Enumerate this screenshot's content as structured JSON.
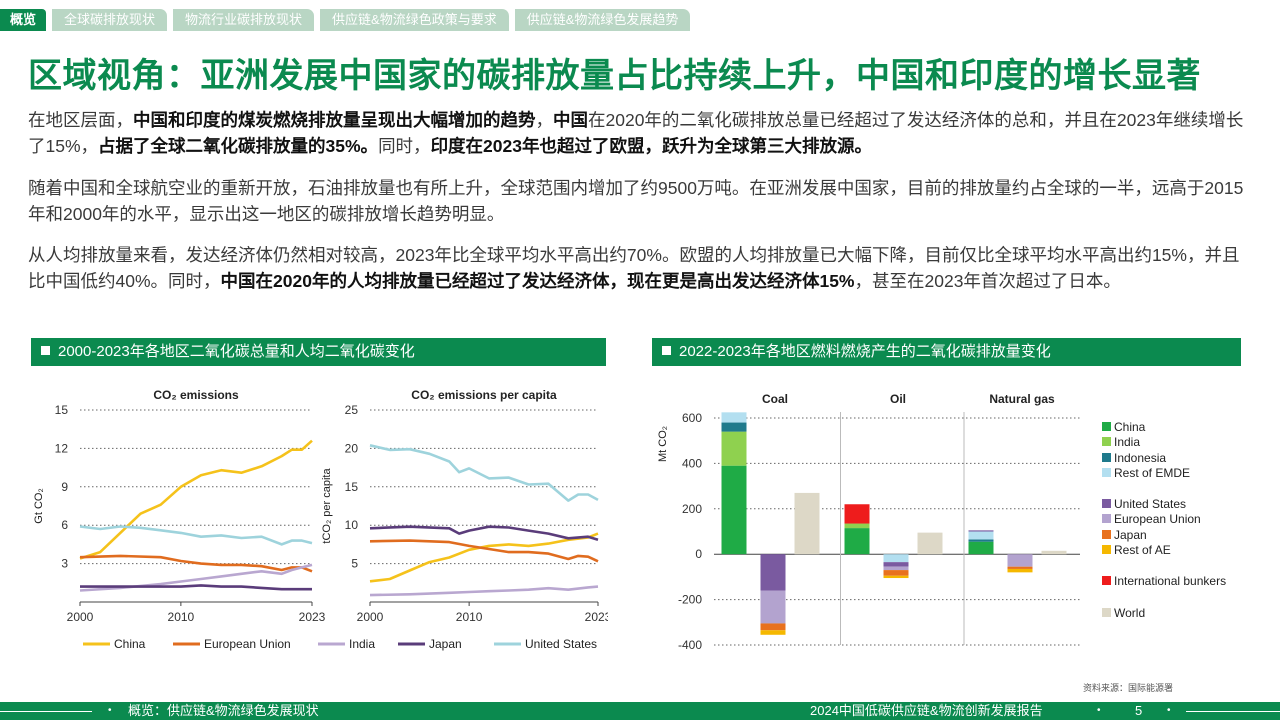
{
  "nav": {
    "active": "概览",
    "tabs": [
      "全球碳排放现状",
      "物流行业碳排放现状",
      "供应链&物流绿色政策与要求",
      "供应链&物流绿色发展趋势"
    ]
  },
  "title": "区域视角：亚洲发展中国家的碳排放量占比持续上升，中国和印度的增长显著",
  "paragraphs": [
    [
      {
        "t": "在地区层面，",
        "b": false
      },
      {
        "t": "中国和印度的煤炭燃烧排放量呈现出大幅增加的趋势",
        "b": true
      },
      {
        "t": "，",
        "b": false
      },
      {
        "t": "中国",
        "b": true
      },
      {
        "t": "在2020年的二氧化碳排放总量已经超过了发达经济体的总和，并且在2023年继续增长了15%，",
        "b": false
      },
      {
        "t": "占据了全球二氧化碳排放量的35%。",
        "b": true
      },
      {
        "t": "同时，",
        "b": false
      },
      {
        "t": "印度在2023年也超过了欧盟，跃升为全球第三大排放源。",
        "b": true
      }
    ],
    [
      {
        "t": "随着中国和全球航空业的重新开放，石油排放量也有所上升，全球范围内增加了约9500万吨。在亚洲发展中国家，目前的排放量约占全球的一半，远高于2015年和2000年的水平，显示出这一地区的碳排放增长趋势明显。",
        "b": false
      }
    ],
    [
      {
        "t": "从人均排放量来看，发达经济体仍然相对较高，2023年比全球平均水平高出约70%。欧盟的人均排放量已大幅下降，目前仅比全球平均水平高出约15%，并且比中国低约40%。同时，",
        "b": false
      },
      {
        "t": "中国在2020年的人均排放量已经超过了发达经济体，现在更是高出发达经济体15%",
        "b": true
      },
      {
        "t": "，甚至在2023年首次超过了日本。",
        "b": false
      }
    ]
  ],
  "section_left": "2000-2023年各地区二氧化碳总量和人均二氧化碳变化",
  "section_right": "2022-2023年各地区燃料燃烧产生的二氧化碳排放量变化",
  "colors": {
    "green": "#0b8a4f",
    "China": "#f5c21b",
    "European Union": "#e06c1f",
    "India": "#b9a7d0",
    "Japan": "#5a3c7a",
    "United States": "#9ed3dc",
    "bar_China": "#1fab46",
    "bar_India": "#8fd14f",
    "bar_Indonesia": "#1f7a8c",
    "bar_RestEMDE": "#b3dff0",
    "bar_US": "#7a5aa0",
    "bar_EU": "#b3a3cf",
    "bar_Japan": "#e8711e",
    "bar_RestAE": "#f5b800",
    "bar_Bunkers": "#ee1c1c",
    "bar_World": "#ddd8c7"
  },
  "chart_data": [
    {
      "type": "line",
      "title": "CO₂ emissions",
      "ylabel": "Gt CO₂",
      "xlim": [
        2000,
        2023
      ],
      "ylim": [
        0,
        15
      ],
      "yticks": [
        3,
        6,
        9,
        12,
        15
      ],
      "xticks": [
        2000,
        2010,
        2023
      ],
      "grid": true,
      "series": [
        {
          "name": "China",
          "x": [
            2000,
            2002,
            2004,
            2006,
            2008,
            2010,
            2012,
            2014,
            2016,
            2018,
            2020,
            2021,
            2022,
            2023
          ],
          "values": [
            3.4,
            3.9,
            5.4,
            6.9,
            7.6,
            9.0,
            9.9,
            10.3,
            10.1,
            10.6,
            11.4,
            11.9,
            11.9,
            12.6
          ]
        },
        {
          "name": "European Union",
          "x": [
            2000,
            2004,
            2008,
            2010,
            2012,
            2014,
            2016,
            2018,
            2020,
            2021,
            2022,
            2023
          ],
          "values": [
            3.5,
            3.6,
            3.5,
            3.2,
            3.0,
            2.9,
            2.9,
            2.8,
            2.5,
            2.7,
            2.7,
            2.4
          ]
        },
        {
          "name": "India",
          "x": [
            2000,
            2004,
            2008,
            2010,
            2012,
            2014,
            2016,
            2018,
            2020,
            2021,
            2022,
            2023
          ],
          "values": [
            0.9,
            1.1,
            1.4,
            1.6,
            1.8,
            2.0,
            2.2,
            2.4,
            2.2,
            2.5,
            2.7,
            2.9
          ]
        },
        {
          "name": "Japan",
          "x": [
            2000,
            2004,
            2008,
            2010,
            2012,
            2014,
            2016,
            2018,
            2020,
            2022,
            2023
          ],
          "values": [
            1.2,
            1.2,
            1.2,
            1.2,
            1.3,
            1.2,
            1.2,
            1.1,
            1.0,
            1.0,
            1.0
          ]
        },
        {
          "name": "United States",
          "x": [
            2000,
            2002,
            2004,
            2006,
            2008,
            2010,
            2012,
            2014,
            2016,
            2018,
            2020,
            2021,
            2022,
            2023
          ],
          "values": [
            5.9,
            5.7,
            5.9,
            5.8,
            5.6,
            5.4,
            5.1,
            5.2,
            5.0,
            5.1,
            4.5,
            4.8,
            4.8,
            4.6
          ]
        }
      ]
    },
    {
      "type": "line",
      "title": "CO₂ emissions per capita",
      "ylabel": "tCO₂ per capita",
      "xlim": [
        2000,
        2023
      ],
      "ylim": [
        0,
        25
      ],
      "yticks": [
        5,
        10,
        15,
        20,
        25
      ],
      "xticks": [
        2000,
        2010,
        2023
      ],
      "grid": true,
      "series": [
        {
          "name": "China",
          "x": [
            2000,
            2002,
            2004,
            2006,
            2008,
            2010,
            2012,
            2014,
            2016,
            2018,
            2020,
            2022,
            2023
          ],
          "values": [
            2.7,
            3.0,
            4.1,
            5.2,
            5.8,
            6.8,
            7.3,
            7.5,
            7.3,
            7.6,
            8.1,
            8.4,
            8.9
          ]
        },
        {
          "name": "European Union",
          "x": [
            2000,
            2004,
            2008,
            2010,
            2012,
            2014,
            2016,
            2018,
            2020,
            2021,
            2022,
            2023
          ],
          "values": [
            7.9,
            8.0,
            7.8,
            7.3,
            6.9,
            6.5,
            6.5,
            6.3,
            5.6,
            6.0,
            5.9,
            5.3
          ]
        },
        {
          "name": "India",
          "x": [
            2000,
            2004,
            2008,
            2010,
            2012,
            2014,
            2016,
            2018,
            2020,
            2022,
            2023
          ],
          "values": [
            0.9,
            1.0,
            1.2,
            1.3,
            1.4,
            1.5,
            1.6,
            1.8,
            1.6,
            1.9,
            2.0
          ]
        },
        {
          "name": "Japan",
          "x": [
            2000,
            2004,
            2008,
            2009,
            2010,
            2012,
            2014,
            2016,
            2018,
            2020,
            2022,
            2023
          ],
          "values": [
            9.6,
            9.8,
            9.6,
            8.9,
            9.3,
            9.8,
            9.7,
            9.3,
            8.9,
            8.3,
            8.5,
            8.1
          ]
        },
        {
          "name": "United States",
          "x": [
            2000,
            2002,
            2004,
            2006,
            2008,
            2009,
            2010,
            2012,
            2014,
            2016,
            2018,
            2020,
            2021,
            2022,
            2023
          ],
          "values": [
            20.4,
            19.8,
            19.9,
            19.3,
            18.3,
            16.9,
            17.4,
            16.1,
            16.2,
            15.3,
            15.4,
            13.2,
            14.0,
            14.0,
            13.3
          ]
        }
      ]
    },
    {
      "type": "bar",
      "stacked": true,
      "ylabel": "Mt CO₂",
      "ylim": [
        -400,
        600
      ],
      "yticks": [
        -400,
        -200,
        0,
        200,
        400,
        600
      ],
      "grid": true,
      "groups": [
        "Coal",
        "Oil",
        "Natural gas"
      ],
      "legend": [
        "China",
        "India",
        "Indonesia",
        "Rest of EMDE",
        "United States",
        "European Union",
        "Japan",
        "Rest of AE",
        "International bunkers",
        "World"
      ],
      "bars": [
        {
          "group": "Coal",
          "kind": "emde",
          "segments": [
            {
              "name": "China",
              "value": 390
            },
            {
              "name": "India",
              "value": 150
            },
            {
              "name": "Indonesia",
              "value": 40
            },
            {
              "name": "Rest of EMDE",
              "value": 45
            }
          ]
        },
        {
          "group": "Coal",
          "kind": "ae",
          "segments": [
            {
              "name": "United States",
              "value": -160
            },
            {
              "name": "European Union",
              "value": -145
            },
            {
              "name": "Japan",
              "value": -30
            },
            {
              "name": "Rest of AE",
              "value": -20
            }
          ]
        },
        {
          "group": "Coal",
          "kind": "world",
          "segments": [
            {
              "name": "World",
              "value": 270
            }
          ]
        },
        {
          "group": "Oil",
          "kind": "emde",
          "segments": [
            {
              "name": "China",
              "value": 115
            },
            {
              "name": "India",
              "value": 20
            },
            {
              "name": "International bunkers",
              "value": 85
            }
          ]
        },
        {
          "group": "Oil",
          "kind": "ae",
          "segments": [
            {
              "name": "Rest of EMDE",
              "value": -35
            },
            {
              "name": "United States",
              "value": -20
            },
            {
              "name": "European Union",
              "value": -15
            },
            {
              "name": "Japan",
              "value": -25
            },
            {
              "name": "Rest of AE",
              "value": -10
            }
          ]
        },
        {
          "group": "Oil",
          "kind": "world",
          "segments": [
            {
              "name": "World",
              "value": 95
            }
          ]
        },
        {
          "group": "Natural gas",
          "kind": "emde",
          "segments": [
            {
              "name": "China",
              "value": 55
            },
            {
              "name": "Indonesia",
              "value": 10
            },
            {
              "name": "Rest of EMDE",
              "value": 35
            },
            {
              "name": "United States",
              "value": 5
            }
          ]
        },
        {
          "group": "Natural gas",
          "kind": "ae",
          "segments": [
            {
              "name": "European Union",
              "value": -55
            },
            {
              "name": "Japan",
              "value": -10
            },
            {
              "name": "Rest of AE",
              "value": -15
            }
          ]
        },
        {
          "group": "Natural gas",
          "kind": "world",
          "segments": [
            {
              "name": "World",
              "value": 15
            }
          ]
        }
      ]
    }
  ],
  "source": "资料来源：国际能源署",
  "footer": {
    "left": "概览：供应链&物流绿色发展现状",
    "right": "2024中国低碳供应链&物流创新发展报告",
    "page": "5",
    "bullet": "•"
  }
}
